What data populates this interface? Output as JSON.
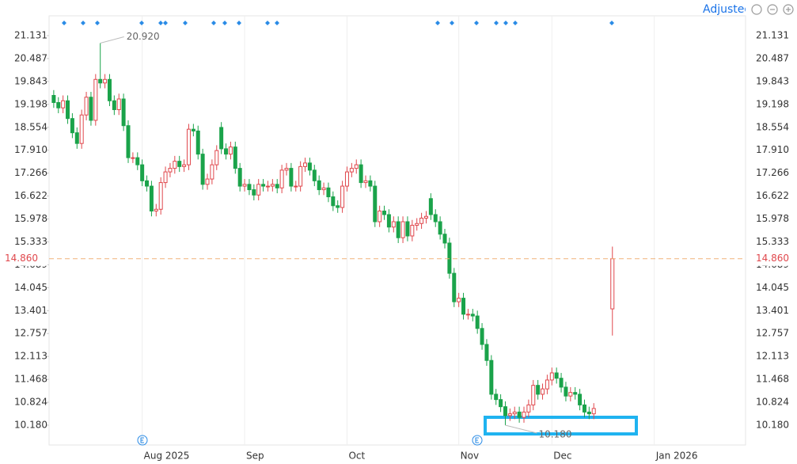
{
  "toolbar": {
    "label": "Adjusted"
  },
  "chart_data": {
    "type": "candlestick",
    "up_color": "#e0474c",
    "down_color": "#1aa34a",
    "open": [
      19.45,
      19.25,
      19.1,
      19.3,
      18.8,
      18.4,
      18.1,
      18.9,
      19.4,
      18.75,
      19.9,
      19.8,
      19.9,
      19.3,
      19.05,
      19.35,
      18.6,
      17.7,
      17.7,
      17.5,
      17.05,
      16.9,
      16.2,
      16.25,
      17.0,
      17.3,
      17.4,
      17.6,
      17.45,
      17.5,
      18.5,
      18.45,
      17.8,
      16.95,
      17.1,
      17.5,
      18.55,
      17.95,
      17.8,
      18.0,
      17.4,
      16.9,
      16.95,
      16.8,
      16.65,
      16.95,
      16.9,
      16.9,
      16.95,
      16.85,
      17.35,
      17.4,
      16.9,
      16.9,
      17.45,
      17.55,
      17.35,
      17.05,
      16.8,
      16.85,
      16.6,
      16.35,
      16.3,
      16.9,
      17.3,
      17.4,
      17.5,
      17.0,
      17.05,
      16.9,
      15.9,
      16.2,
      16.1,
      15.75,
      15.9,
      15.45,
      15.9,
      15.5,
      15.8,
      15.85,
      16.0,
      16.55,
      16.1,
      15.9,
      15.55,
      15.3,
      14.45,
      13.65,
      13.75,
      13.3,
      13.3,
      13.25,
      12.9,
      12.45,
      12.0,
      11.05,
      10.9,
      10.7,
      10.45,
      10.5,
      10.55,
      10.4,
      10.55,
      10.75,
      11.3,
      11.05,
      11.2,
      11.45,
      11.65,
      11.5,
      11.25,
      11.0,
      11.1,
      11.05,
      10.75,
      10.55,
      10.5,
      null,
      null,
      null,
      13.45
    ],
    "high": [
      19.6,
      19.4,
      19.45,
      19.45,
      18.95,
      18.55,
      19.05,
      19.55,
      19.55,
      20.05,
      20.92,
      20.05,
      20.05,
      19.45,
      19.5,
      19.5,
      18.75,
      17.85,
      17.85,
      17.65,
      17.2,
      17.05,
      16.4,
      17.15,
      17.45,
      17.55,
      17.75,
      17.75,
      17.65,
      18.65,
      18.65,
      18.6,
      17.95,
      17.25,
      17.65,
      18.05,
      18.7,
      18.1,
      18.15,
      18.15,
      17.55,
      17.1,
      17.1,
      16.95,
      17.1,
      17.1,
      17.05,
      17.1,
      17.1,
      17.5,
      17.55,
      17.55,
      17.05,
      17.6,
      17.7,
      17.7,
      17.5,
      17.2,
      17.0,
      17.0,
      16.75,
      16.5,
      17.05,
      17.45,
      17.55,
      17.65,
      17.65,
      17.2,
      17.2,
      17.05,
      16.35,
      16.35,
      16.25,
      16.05,
      16.05,
      16.05,
      16.05,
      15.95,
      16.0,
      16.15,
      16.2,
      16.7,
      16.25,
      16.05,
      15.7,
      15.45,
      14.6,
      13.9,
      13.9,
      13.45,
      13.45,
      13.4,
      13.05,
      12.6,
      12.15,
      11.2,
      11.05,
      10.85,
      10.65,
      10.7,
      10.7,
      10.7,
      10.9,
      11.45,
      11.45,
      11.35,
      11.6,
      11.8,
      11.8,
      11.65,
      11.4,
      11.25,
      11.25,
      11.2,
      10.9,
      10.7,
      10.8,
      null,
      null,
      null,
      15.2
    ],
    "low": [
      19.1,
      18.95,
      18.95,
      18.65,
      18.25,
      17.95,
      17.95,
      18.75,
      18.6,
      18.6,
      19.65,
      19.65,
      19.15,
      18.9,
      18.9,
      18.45,
      17.55,
      17.55,
      17.35,
      16.9,
      16.75,
      16.05,
      16.05,
      16.1,
      16.85,
      17.15,
      17.25,
      17.3,
      17.3,
      17.35,
      18.3,
      17.65,
      16.8,
      16.8,
      16.95,
      17.35,
      17.8,
      17.65,
      17.65,
      17.25,
      16.75,
      16.75,
      16.65,
      16.5,
      16.5,
      16.75,
      16.75,
      16.75,
      16.7,
      16.7,
      17.2,
      16.75,
      16.75,
      16.75,
      17.3,
      17.2,
      16.9,
      16.65,
      16.65,
      16.45,
      16.2,
      16.15,
      16.15,
      16.75,
      17.15,
      17.25,
      16.85,
      16.85,
      16.75,
      15.75,
      15.75,
      15.95,
      15.6,
      15.6,
      15.3,
      15.3,
      15.35,
      15.35,
      15.65,
      15.7,
      15.85,
      15.95,
      15.75,
      15.4,
      15.15,
      14.3,
      13.5,
      13.5,
      13.15,
      13.15,
      13.1,
      12.75,
      12.3,
      11.85,
      10.9,
      10.75,
      10.55,
      10.18,
      10.3,
      10.35,
      10.25,
      10.25,
      10.4,
      10.6,
      10.9,
      10.9,
      11.05,
      11.3,
      11.35,
      11.1,
      10.85,
      10.85,
      10.9,
      10.6,
      10.4,
      10.35,
      10.35,
      null,
      null,
      null,
      12.7
    ],
    "close": [
      19.25,
      19.1,
      19.3,
      18.8,
      18.4,
      18.1,
      18.9,
      19.4,
      18.75,
      19.9,
      19.8,
      19.9,
      19.3,
      19.05,
      19.35,
      18.6,
      17.7,
      17.7,
      17.5,
      17.05,
      16.9,
      16.2,
      16.25,
      17.0,
      17.3,
      17.4,
      17.6,
      17.45,
      17.5,
      18.5,
      18.45,
      17.8,
      16.95,
      17.1,
      17.5,
      17.9,
      17.95,
      17.8,
      18.0,
      17.4,
      16.9,
      16.95,
      16.8,
      16.65,
      16.95,
      16.9,
      16.9,
      16.95,
      16.85,
      17.35,
      17.4,
      16.9,
      16.9,
      17.45,
      17.55,
      17.35,
      17.05,
      16.8,
      16.85,
      16.6,
      16.35,
      16.3,
      16.9,
      17.3,
      17.4,
      17.5,
      17.0,
      17.05,
      16.9,
      15.9,
      16.2,
      16.1,
      15.75,
      15.9,
      15.45,
      15.9,
      15.5,
      15.8,
      15.85,
      16.0,
      16.05,
      16.1,
      15.9,
      15.55,
      15.3,
      14.45,
      13.65,
      13.75,
      13.3,
      13.3,
      13.25,
      12.9,
      12.45,
      12.0,
      11.05,
      10.9,
      10.7,
      10.45,
      10.5,
      10.55,
      10.4,
      10.55,
      10.75,
      11.3,
      11.05,
      11.2,
      11.45,
      11.65,
      11.5,
      11.25,
      11.0,
      11.1,
      11.05,
      10.75,
      10.55,
      10.5,
      10.65,
      null,
      null,
      null,
      14.86
    ],
    "xlim": [
      -1,
      148.6
    ],
    "xticks": [
      {
        "value": 19,
        "label": "Aug 2025"
      },
      {
        "value": 41,
        "label": "Sep"
      },
      {
        "value": 63,
        "label": "Oct"
      },
      {
        "value": 87,
        "label": "Nov"
      },
      {
        "value": 107,
        "label": "Dec"
      },
      {
        "value": 129,
        "label": "Jan 2026"
      }
    ],
    "ylim": [
      9.668,
      21.687
    ],
    "yticks": [
      21.131,
      20.487,
      19.843,
      19.198,
      18.554,
      {
        "value": 17.91,
        "label": "17.910"
      },
      17.266,
      16.622,
      15.978,
      15.333,
      14.689,
      14.045,
      13.401,
      12.757,
      12.113,
      11.468,
      10.824,
      {
        "value": 10.18,
        "label": "10.180"
      }
    ],
    "grid": "x",
    "max_label": {
      "value": 20.92,
      "label": "20.920"
    },
    "min_label": {
      "value": 10.18,
      "label": "10.180"
    },
    "last_price": {
      "value": 14.86,
      "label": "14.860"
    }
  }
}
